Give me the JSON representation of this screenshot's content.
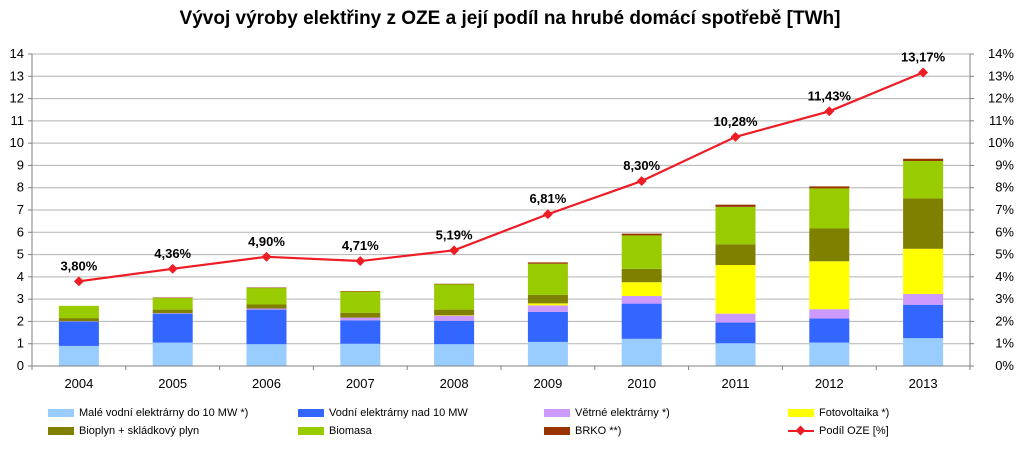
{
  "chart_data": {
    "type": "bar",
    "stacked": true,
    "title": "Vývoj výroby elektřiny z OZE a její podíl na hrubé domácí spotřebě [TWh]",
    "categories": [
      "2004",
      "2005",
      "2006",
      "2007",
      "2008",
      "2009",
      "2010",
      "2011",
      "2012",
      "2013"
    ],
    "ylim": [
      0,
      14
    ],
    "y_ticks": [
      "0",
      "1",
      "2",
      "3",
      "4",
      "5",
      "6",
      "7",
      "8",
      "9",
      "10",
      "11",
      "12",
      "13",
      "14"
    ],
    "y2lim": [
      0,
      14
    ],
    "y2_ticks": [
      "0%",
      "1%",
      "2%",
      "3%",
      "4%",
      "5%",
      "6%",
      "7%",
      "8%",
      "9%",
      "10%",
      "11%",
      "12%",
      "13%",
      "14%"
    ],
    "grid": true,
    "legend_position": "bottom",
    "series": [
      {
        "name": "Malé vodní elektrárny do 10 MW *)",
        "color": "#99ccff",
        "values": [
          0.9,
          1.05,
          0.98,
          1.0,
          0.98,
          1.08,
          1.22,
          1.02,
          1.05,
          1.25
        ]
      },
      {
        "name": "Vodní elektrárny nad 10 MW",
        "color": "#3366ff",
        "values": [
          1.1,
          1.3,
          1.55,
          1.05,
          1.05,
          1.35,
          1.58,
          0.93,
          1.08,
          1.5
        ]
      },
      {
        "name": "Větrné elektrárny *)",
        "color": "#cc99ff",
        "values": [
          0.01,
          0.02,
          0.05,
          0.12,
          0.24,
          0.29,
          0.34,
          0.4,
          0.42,
          0.48
        ]
      },
      {
        "name": "Fotovoltaika *)",
        "color": "#ffff00",
        "values": [
          0.0,
          0.0,
          0.0,
          0.0,
          0.01,
          0.09,
          0.62,
          2.18,
          2.15,
          2.03
        ]
      },
      {
        "name": "Bioplyn + skládkový plyn",
        "color": "#808000",
        "values": [
          0.14,
          0.16,
          0.18,
          0.22,
          0.25,
          0.38,
          0.6,
          0.93,
          1.47,
          2.26
        ]
      },
      {
        "name": "Biomasa",
        "color": "#99cc00",
        "values": [
          0.55,
          0.53,
          0.75,
          0.96,
          1.15,
          1.4,
          1.5,
          1.68,
          1.8,
          1.68
        ]
      },
      {
        "name": "BRKO **)",
        "color": "#993300",
        "values": [
          0.0,
          0.01,
          0.01,
          0.01,
          0.01,
          0.06,
          0.08,
          0.1,
          0.09,
          0.1
        ]
      }
    ],
    "line_series": {
      "name": "Podíl OZE [%]",
      "color": "#ee1c25",
      "axis": "right",
      "values": [
        3.8,
        4.36,
        4.9,
        4.71,
        5.19,
        6.81,
        8.3,
        10.28,
        11.43,
        13.17
      ],
      "labels": [
        "3,80%",
        "4,36%",
        "4,90%",
        "4,71%",
        "5,19%",
        "6,81%",
        "8,30%",
        "10,28%",
        "11,43%",
        "13,17%"
      ]
    }
  }
}
